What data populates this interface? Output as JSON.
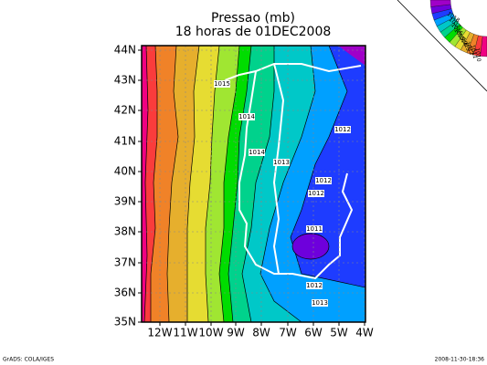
{
  "title": "Pressao (mb)",
  "subtitle": "18 horas de 01DEC2008",
  "x_axis": {
    "ticks": [
      "12W",
      "11W",
      "10W",
      "9W",
      "8W",
      "7W",
      "6W",
      "5W",
      "4W"
    ]
  },
  "y_axis": {
    "ticks": [
      "44N",
      "43N",
      "42N",
      "41N",
      "40N",
      "39N",
      "38N",
      "37N",
      "36N",
      "35N"
    ]
  },
  "contour_labels": [
    "1015",
    "1014",
    "1014",
    "1013",
    "1012",
    "1012",
    "1012",
    "1011",
    "1012",
    "1013"
  ],
  "colorbar": {
    "labels": [
      "1018",
      "1017",
      "1016",
      "1015",
      "1014",
      "1013",
      "1012",
      "1011",
      "1010"
    ]
  },
  "footer": {
    "left": "GrADS: COLA/IGES",
    "right": "2008-11-30-18:36"
  }
}
